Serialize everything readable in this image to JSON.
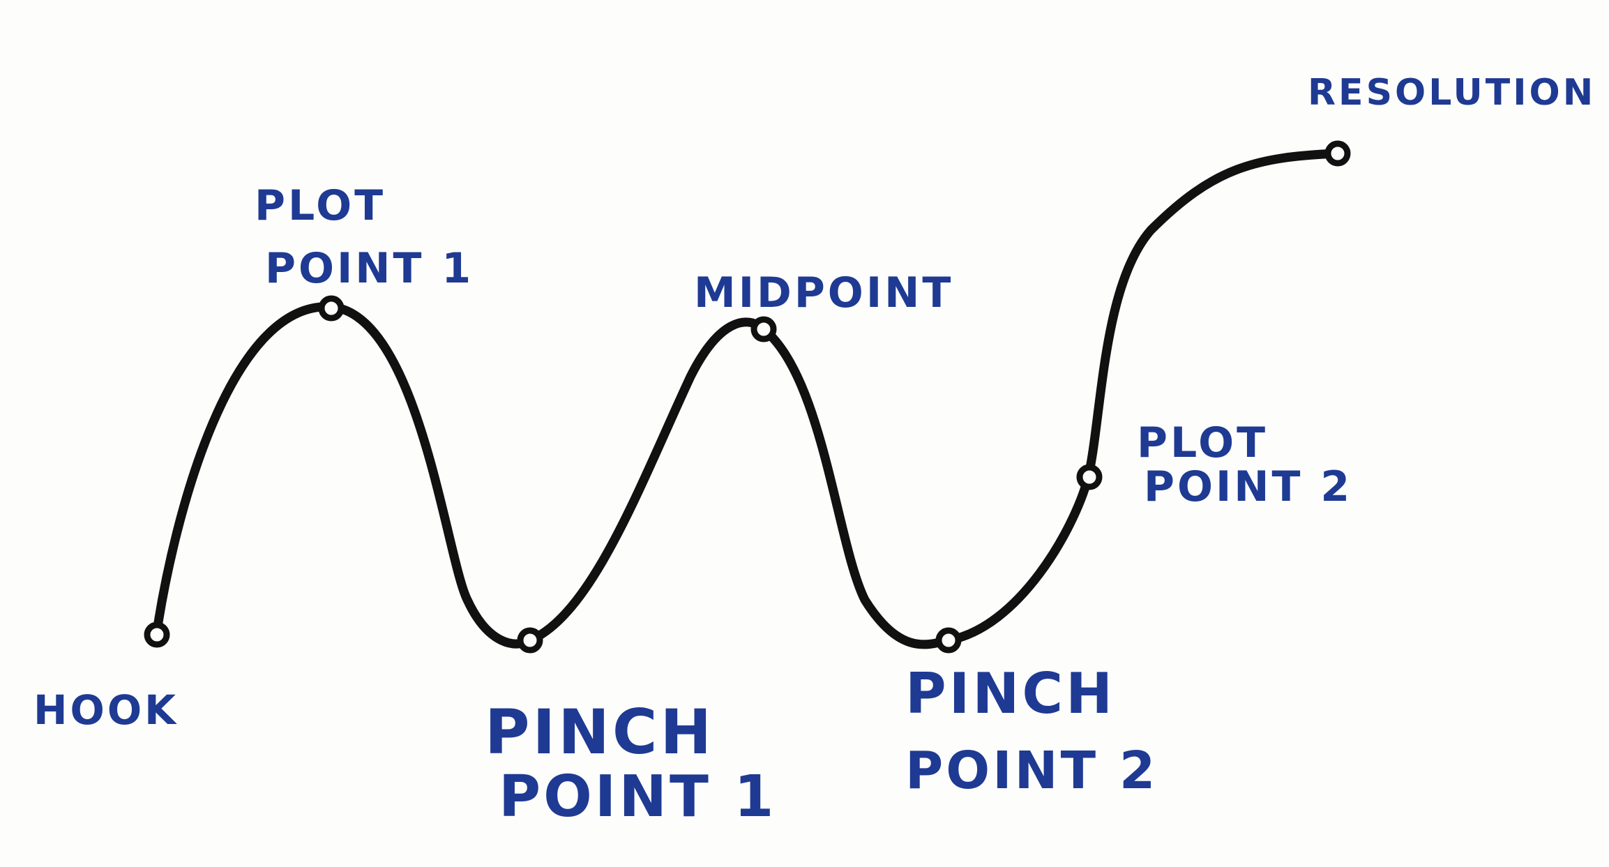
{
  "diagram": {
    "curve_color": "#111111",
    "label_color": "#1f3a93",
    "labels": {
      "hook": "HOOK",
      "plot_point_1": [
        "PLOT",
        "POINT 1"
      ],
      "pinch_point_1": [
        "PINCH",
        "POINT 1"
      ],
      "midpoint": "MIDPOINT",
      "pinch_point_2": [
        "PINCH",
        "POINT 2"
      ],
      "plot_point_2": [
        "PLOT",
        "POINT 2"
      ],
      "resolution": "RESOLUTION"
    }
  }
}
